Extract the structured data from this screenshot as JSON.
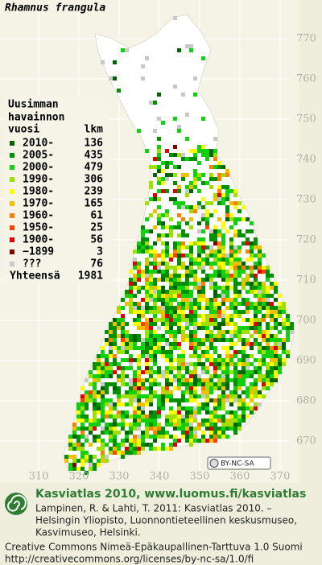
{
  "map": {
    "title": "Rhamnus frangula",
    "legend": {
      "heading": [
        "Uusimman",
        "havainnon"
      ],
      "col_year": "vuosi",
      "col_count": "lkm",
      "items": [
        {
          "label": "2010-",
          "count": 136,
          "color": "#006400"
        },
        {
          "label": "2005-",
          "count": 435,
          "color": "#009000"
        },
        {
          "label": "2000-",
          "count": 479,
          "color": "#10d010"
        },
        {
          "label": "1990-",
          "count": 306,
          "color": "#a0e000"
        },
        {
          "label": "1980-",
          "count": 239,
          "color": "#ffff00"
        },
        {
          "label": "1970-",
          "count": 165,
          "color": "#f0c000"
        },
        {
          "label": "1960-",
          "count": 61,
          "color": "#ff8000"
        },
        {
          "label": "1950-",
          "count": 25,
          "color": "#ff4000"
        },
        {
          "label": "1900-",
          "count": 56,
          "color": "#e00000"
        },
        {
          "label": "−1899",
          "count": 3,
          "color": "#800000"
        },
        {
          "label": "???",
          "count": 76,
          "color": "#c8c8c8"
        }
      ],
      "total_label": "Yhteensä",
      "total": 1981
    },
    "yticks": [
      770,
      760,
      750,
      740,
      730,
      720,
      710,
      700,
      690,
      680,
      670
    ],
    "xticks": [
      310,
      320,
      330,
      340,
      350,
      360,
      370
    ],
    "license_badge": "BY-NC-SA"
  },
  "footer": {
    "heading": "Kasviatlas 2010, www.luomus.fi/kasviatlas",
    "citation": [
      "Lampinen, R. & Lahti, T. 2011: Kasviatlas 2010. –",
      "Helsingin Yliopisto, Luonnontieteellinen keskusmuseo,",
      "Kasvimuseo, Helsinki."
    ],
    "license": [
      "Creative Commons Nimeä-Epäkaupallinen-Tarttuva 1.0 Suomi",
      "http://creativecommons.org/licenses/by-nc-sa/1.0/fi"
    ]
  }
}
